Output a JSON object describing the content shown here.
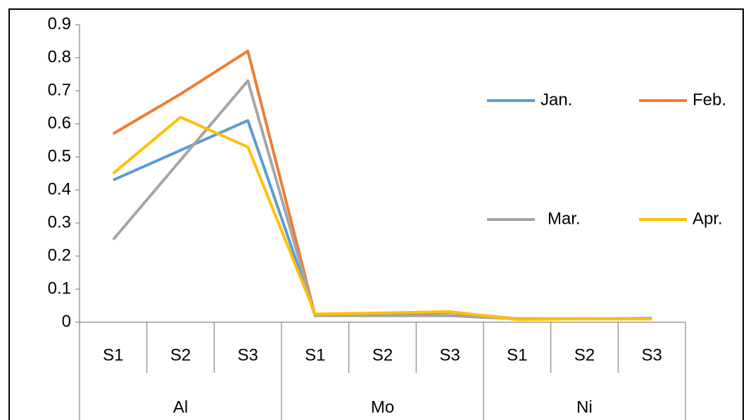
{
  "chart_data": {
    "type": "line",
    "categories": [
      "S1",
      "S2",
      "S3",
      "S1",
      "S2",
      "S3",
      "S1",
      "S2",
      "S3"
    ],
    "category_groups": [
      "Al",
      "Mo",
      "Ni"
    ],
    "series": [
      {
        "name": "Jan.",
        "color": "#5b9bd5",
        "values": [
          0.43,
          0.52,
          0.61,
          0.02,
          0.02,
          0.02,
          0.01,
          0.01,
          0.012
        ]
      },
      {
        "name": "Feb.",
        "color": "#ed7d31",
        "values": [
          0.57,
          0.69,
          0.82,
          0.02,
          0.025,
          0.03,
          0.01,
          0.01,
          0.01
        ]
      },
      {
        "name": "Mar.",
        "color": "#a5a5a5",
        "values": [
          0.25,
          0.49,
          0.73,
          0.02,
          0.02,
          0.02,
          0.01,
          0.01,
          0.01
        ]
      },
      {
        "name": "Apr.",
        "color": "#ffc000",
        "values": [
          0.45,
          0.62,
          0.53,
          0.025,
          0.028,
          0.032,
          0.008,
          0.01,
          0.01
        ]
      }
    ],
    "ylim": [
      0,
      0.9
    ],
    "yticks": [
      0,
      0.1,
      0.2,
      0.3,
      0.4,
      0.5,
      0.6,
      0.7,
      0.8,
      0.9
    ],
    "grid": false,
    "legend": "right"
  }
}
